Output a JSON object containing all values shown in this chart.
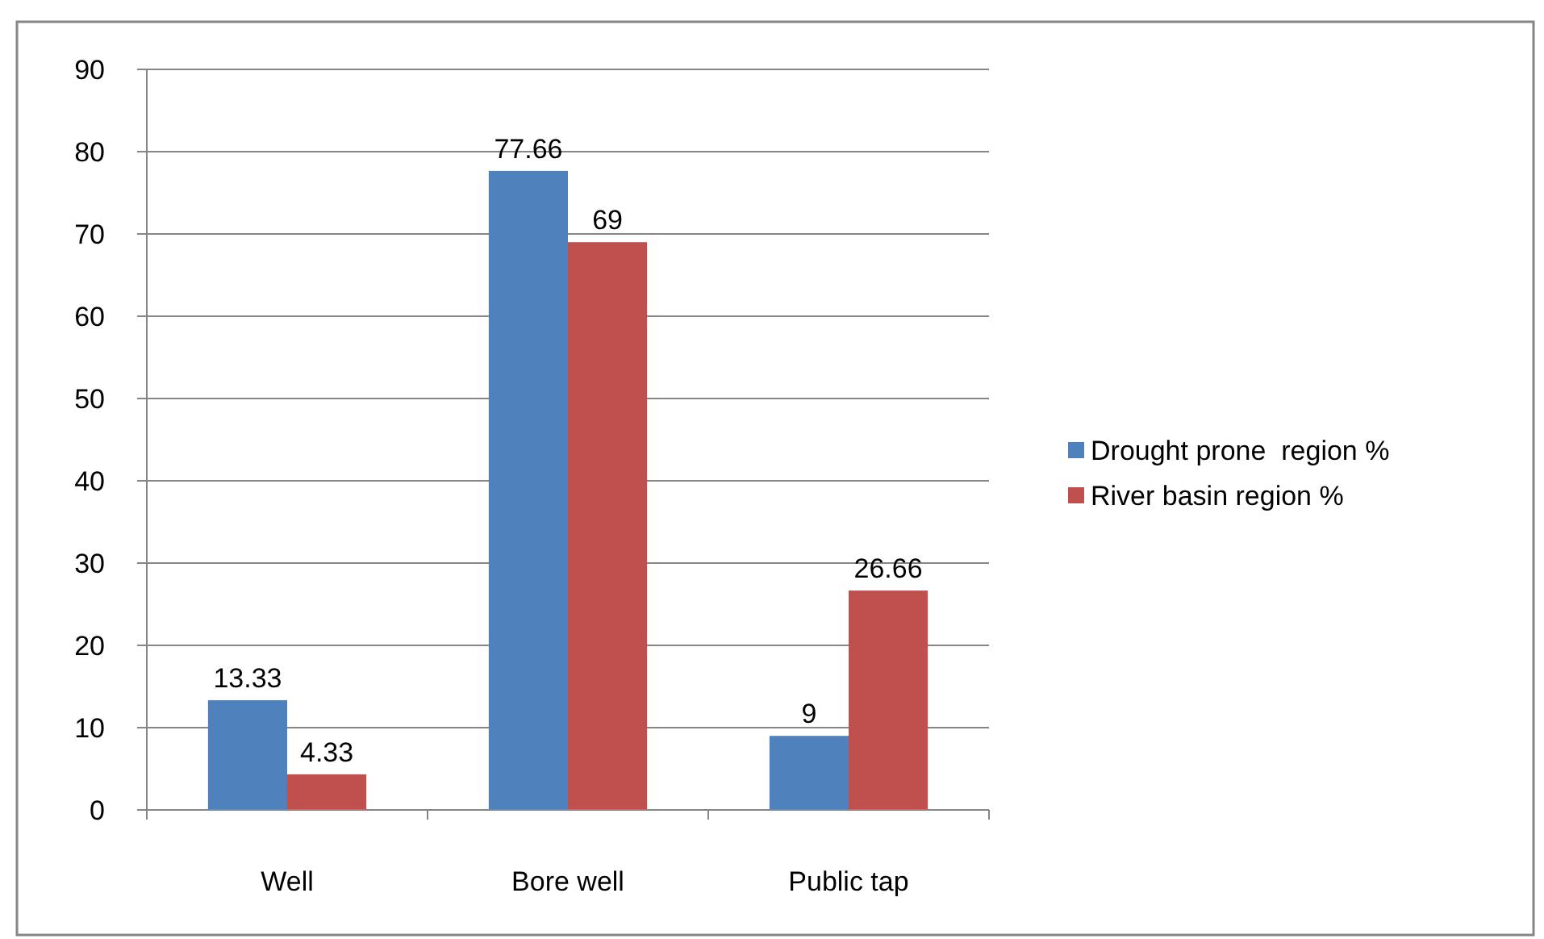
{
  "chart_data": {
    "type": "bar",
    "categories": [
      "Well",
      "Bore well",
      "Public tap"
    ],
    "series": [
      {
        "name": "Drought prone  region %",
        "color": "#4f81bd",
        "values": [
          13.33,
          77.66,
          9
        ]
      },
      {
        "name": "River basin region %",
        "color": "#c0504d",
        "values": [
          4.33,
          69,
          26.66
        ]
      }
    ],
    "ylim": [
      0,
      90
    ],
    "yticks": [
      0,
      10,
      20,
      30,
      40,
      50,
      60,
      70,
      80,
      90
    ],
    "grid": "y",
    "legend": "right",
    "data_labels": true
  }
}
